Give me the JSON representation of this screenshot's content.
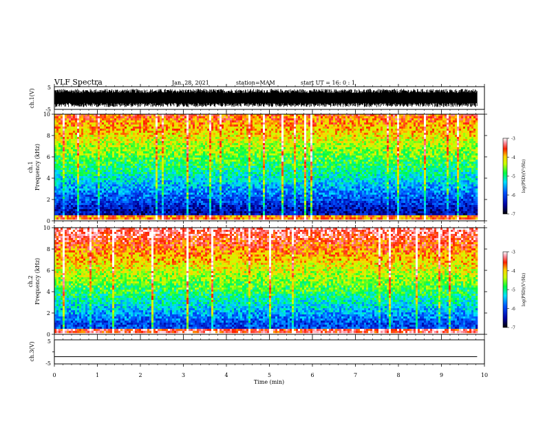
{
  "header": {
    "title": "VLF Spectra",
    "date": "Jan. 28, 2021",
    "station": "station=MAM",
    "start": "start  UT =   16: 0  : 1"
  },
  "chart_data": [
    {
      "type": "line",
      "name": "ch1-waveform",
      "ylabel": "ch.1(V)",
      "ylim": [
        -5,
        5
      ],
      "yticks": [
        "5",
        "-5"
      ],
      "xlim": [
        0,
        10
      ],
      "signal": "broadband noise, roughly +/-4 V",
      "data_end_min": 9.83
    },
    {
      "type": "heatmap",
      "name": "ch1-spectrogram",
      "ylabel_top": "ch.1",
      "ylabel": "Frequency  (kHz)",
      "ylim": [
        0,
        10
      ],
      "yticks": [
        "0",
        "2",
        "4",
        "6",
        "8",
        "10"
      ],
      "xlim": [
        0,
        10
      ],
      "data_end_min": 9.83,
      "colorbar": {
        "label": "log(PSD)(V²/Hz)",
        "range": [
          -7,
          -3
        ],
        "ticks": [
          "-3",
          "-4",
          "-5",
          "-6",
          "-7"
        ]
      },
      "description_values": {
        "high_freq_level": -3.6,
        "low_freq_level": -6.4
      }
    },
    {
      "type": "heatmap",
      "name": "ch2-spectrogram",
      "ylabel_top": "ch.2",
      "ylabel": "Frequency  (kHz)",
      "ylim": [
        0,
        10
      ],
      "yticks": [
        "0",
        "2",
        "4",
        "6",
        "8",
        "10"
      ],
      "xlim": [
        0,
        10
      ],
      "data_end_min": 9.83,
      "colorbar": {
        "label": "log(PSD)(V²/Hz)",
        "range": [
          -7,
          -3
        ],
        "ticks": [
          "-3",
          "-4",
          "-5",
          "-6",
          "-7"
        ]
      },
      "description_values": {
        "high_freq_level": -3.2,
        "low_freq_level": -6.0
      }
    },
    {
      "type": "line",
      "name": "ch3-waveform",
      "ylabel": "ch.3(V)",
      "ylim": [
        -5,
        5
      ],
      "yticks": [
        "5",
        "0",
        "-5"
      ],
      "xlim": [
        0,
        10
      ],
      "signal": "flat",
      "value": -2,
      "data_end_min": 9.83
    }
  ],
  "xaxis": {
    "label": "Time  (min)",
    "ticks": [
      "0",
      "1",
      "2",
      "3",
      "4",
      "5",
      "6",
      "7",
      "8",
      "9",
      "10"
    ]
  }
}
